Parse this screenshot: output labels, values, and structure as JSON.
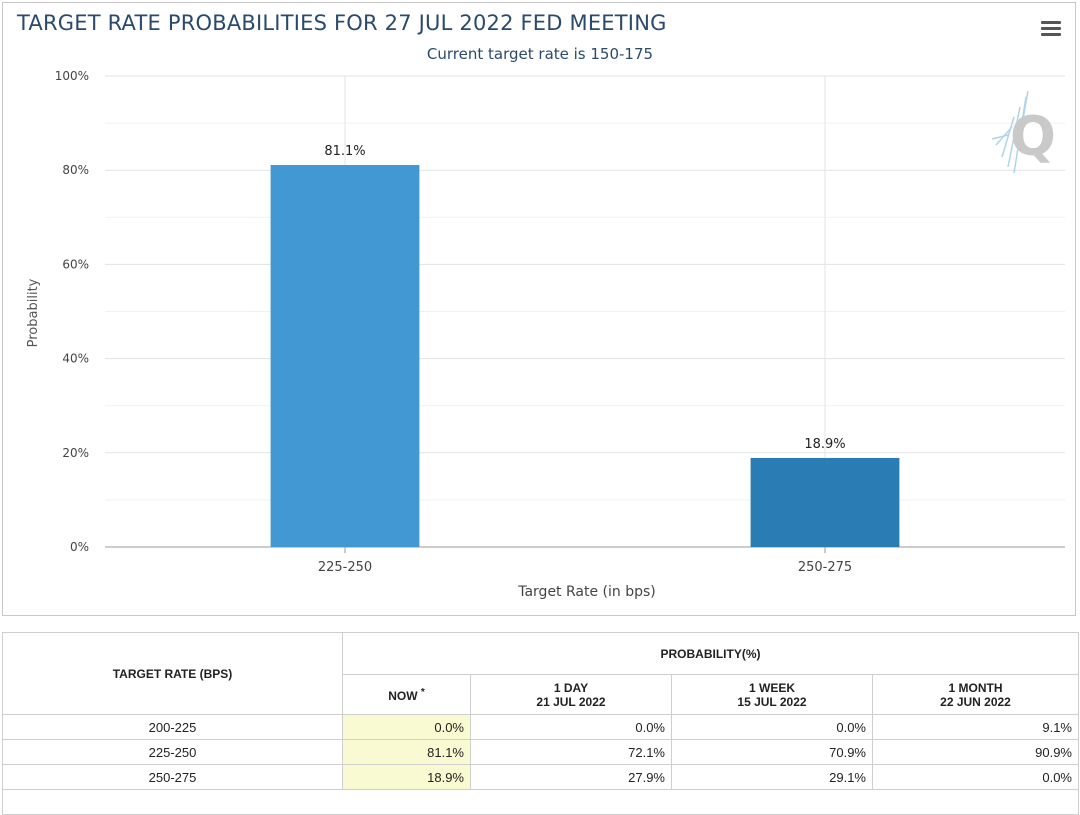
{
  "chart_data": {
    "type": "bar",
    "title": "TARGET RATE PROBABILITIES FOR 27 JUL 2022 FED MEETING",
    "subtitle": "Current target rate is 150-175",
    "categories": [
      "225-250",
      "250-275"
    ],
    "values": [
      81.1,
      18.9
    ],
    "data_labels": [
      "81.1%",
      "18.9%"
    ],
    "bar_colors": [
      "#4298d2",
      "#2a7cb4"
    ],
    "xlabel": "Target Rate (in bps)",
    "ylabel": "Probability",
    "ylim": [
      0,
      100
    ],
    "yticks": [
      0,
      20,
      40,
      60,
      80,
      100
    ],
    "ytick_labels": [
      "0%",
      "20%",
      "40%",
      "60%",
      "80%",
      "100%"
    ],
    "grid": true
  },
  "table": {
    "col_rate_header": "TARGET RATE (BPS)",
    "probability_header": "PROBABILITY(%)",
    "now_header": "NOW",
    "now_marker": "*",
    "day_header": "1 DAY",
    "day_date": "21 JUL 2022",
    "week_header": "1 WEEK",
    "week_date": "15 JUL 2022",
    "month_header": "1 MONTH",
    "month_date": "22 JUN 2022",
    "rows": [
      {
        "rate": "200-225",
        "now": "0.0%",
        "day": "0.0%",
        "week": "0.0%",
        "month": "9.1%"
      },
      {
        "rate": "225-250",
        "now": "81.1%",
        "day": "72.1%",
        "week": "70.9%",
        "month": "90.9%"
      },
      {
        "rate": "250-275",
        "now": "18.9%",
        "day": "27.9%",
        "week": "29.1%",
        "month": "0.0%"
      }
    ]
  },
  "colors": {
    "title": "#2b4a6b",
    "now_highlight": "#fafad2"
  },
  "icons": {
    "menu": "hamburger-menu-icon",
    "logo": "q-logo"
  }
}
